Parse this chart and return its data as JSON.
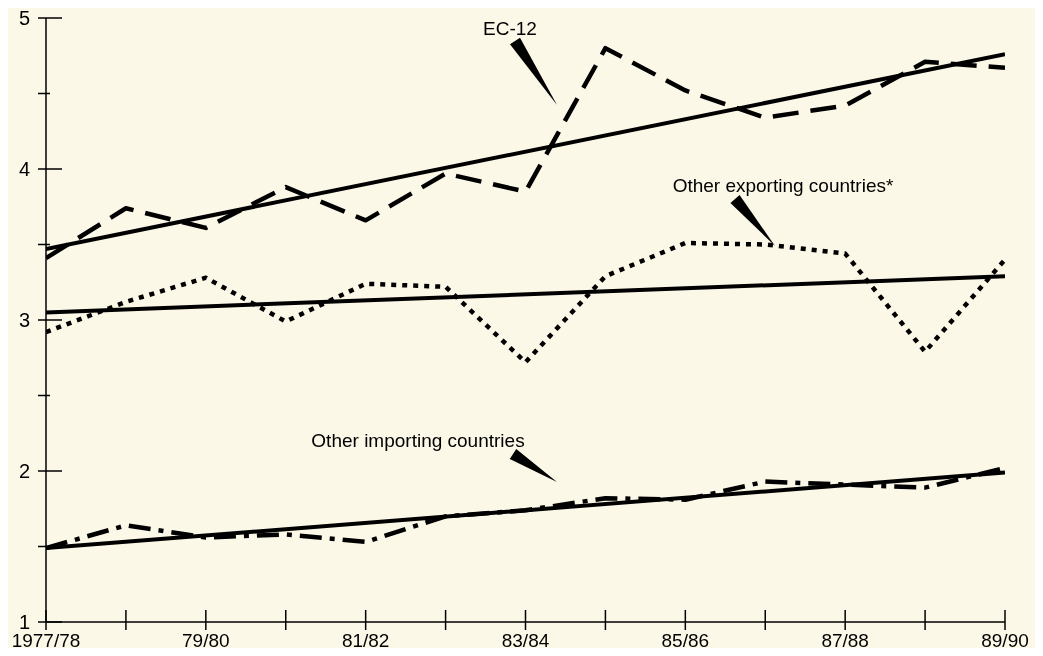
{
  "chart_data": {
    "type": "line",
    "categories": [
      "1977/78",
      null,
      "79/80",
      null,
      "81/82",
      null,
      "83/84",
      null,
      "85/86",
      null,
      "87/88",
      null,
      "89/90"
    ],
    "series": [
      {
        "color": "#000000",
        "line_style": "dashed",
        "values": [
          3.41,
          3.74,
          3.61,
          3.88,
          3.66,
          3.97,
          3.85,
          4.8,
          4.52,
          4.34,
          4.42,
          4.71,
          4.67
        ]
      },
      {
        "color": "#000000",
        "line_style": "solid",
        "values": [
          3.47,
          null,
          null,
          null,
          null,
          null,
          null,
          null,
          null,
          null,
          null,
          null,
          4.76
        ]
      },
      {
        "color": "#000000",
        "line_style": "dotted",
        "values": [
          2.92,
          3.12,
          3.28,
          2.99,
          3.24,
          3.22,
          2.72,
          3.29,
          3.51,
          3.5,
          3.44,
          2.79,
          3.4
        ]
      },
      {
        "color": "#000000",
        "line_style": "solid",
        "values": [
          3.05,
          null,
          null,
          null,
          null,
          null,
          null,
          null,
          null,
          null,
          null,
          null,
          3.29
        ]
      },
      {
        "color": "#000000",
        "line_style": "dashdot",
        "values": [
          1.49,
          1.64,
          1.56,
          1.58,
          1.53,
          1.7,
          1.74,
          1.82,
          1.81,
          1.93,
          1.91,
          1.89,
          2.02
        ]
      },
      {
        "color": "#000000",
        "line_style": "solid",
        "values": [
          1.49,
          null,
          null,
          null,
          null,
          null,
          null,
          null,
          null,
          null,
          null,
          null,
          1.99
        ]
      }
    ],
    "ylim": [
      1,
      5
    ],
    "yticks": [
      1,
      {
        "value": 1.5,
        "label": null
      },
      2,
      {
        "value": 2.5,
        "label": null
      },
      3,
      {
        "value": 3.5,
        "label": null
      },
      4,
      {
        "value": 4.5,
        "label": null
      },
      5
    ],
    "grid": false,
    "legend": false,
    "marker": "none",
    "annotations": [
      "EC-12",
      "Other exporting countries*",
      "Other importing countries"
    ]
  }
}
